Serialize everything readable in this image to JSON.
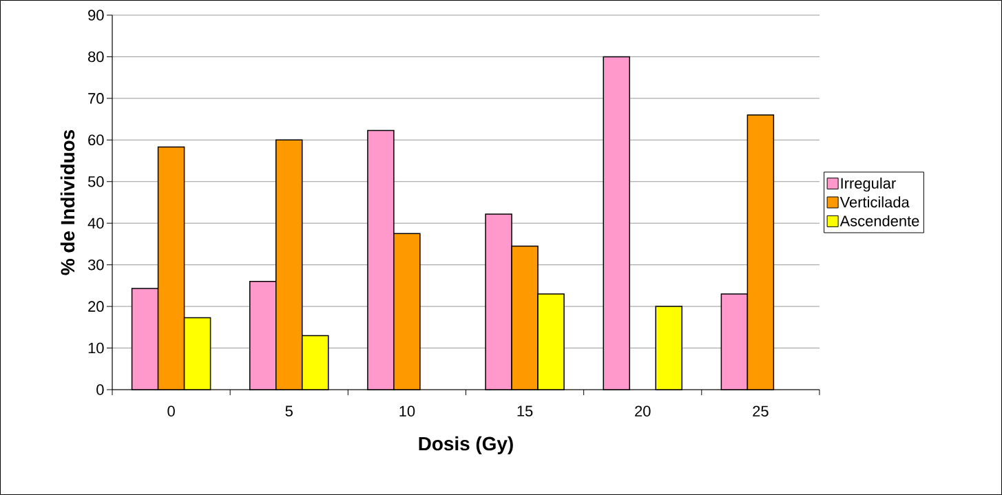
{
  "chart_data": {
    "type": "bar",
    "xlabel": "Dosis (Gy)",
    "ylabel": "% de Individuos",
    "categories": [
      "0",
      "5",
      "10",
      "15",
      "20",
      "25"
    ],
    "series": [
      {
        "name": "Irregular",
        "color": "#ff99cc",
        "values": [
          24.3,
          26,
          62.3,
          42.2,
          80,
          23
        ]
      },
      {
        "name": "Verticilada",
        "color": "#ff9900",
        "values": [
          58.3,
          60,
          37.5,
          34.5,
          null,
          66
        ]
      },
      {
        "name": "Ascendente",
        "color": "#ffff00",
        "values": [
          17.3,
          13,
          null,
          23,
          20,
          null
        ]
      }
    ],
    "ylim": [
      0,
      90
    ],
    "yticks": [
      0,
      10,
      20,
      30,
      40,
      50,
      60,
      70,
      80,
      90
    ],
    "grid": "y",
    "legend": "right"
  }
}
